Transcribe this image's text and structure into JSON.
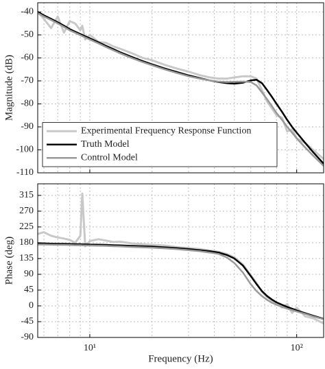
{
  "chart_data": [
    {
      "type": "line",
      "ylabel": "Magnitude (dB)",
      "x": [
        5.6,
        6,
        6.5,
        7,
        7.5,
        8,
        8.5,
        9,
        9.2,
        9.5,
        10,
        11,
        12,
        13,
        14,
        16,
        18,
        20,
        23,
        26,
        30,
        34,
        38,
        42,
        46,
        50,
        55,
        60,
        64,
        68,
        72,
        76,
        80,
        85,
        90,
        95,
        100,
        110,
        120,
        135
      ],
      "series": [
        {
          "name": "Experimental Frequency Response Function",
          "color": "#c8c8c8",
          "width": 3,
          "values": [
            -40,
            -43,
            -47,
            -42,
            -49,
            -44,
            -45,
            -48,
            -46,
            -52,
            -50,
            -53,
            -53.5,
            -55,
            -56,
            -58,
            -60,
            -61,
            -63,
            -64.5,
            -66,
            -67.5,
            -68.5,
            -69,
            -69,
            -68.5,
            -68,
            -68,
            -69,
            -74,
            -79,
            -82,
            -85,
            -86,
            -92,
            -91,
            -95,
            -97,
            -100,
            -104
          ]
        },
        {
          "name": "Truth Model",
          "color": "#000000",
          "width": 2.5,
          "values": [
            -40,
            -41.5,
            -43,
            -44.5,
            -46,
            -47.5,
            -48.6,
            -49.6,
            -50,
            -50.6,
            -51.5,
            -53.2,
            -54.8,
            -56.2,
            -57.5,
            -59.6,
            -61.4,
            -62.8,
            -64.6,
            -66,
            -67.6,
            -68.8,
            -69.8,
            -70.5,
            -71,
            -71.2,
            -70.8,
            -69.8,
            -69.5,
            -71,
            -74,
            -77,
            -80,
            -83.5,
            -87,
            -90,
            -92.5,
            -97,
            -101,
            -106
          ]
        },
        {
          "name": "Control Model",
          "color": "#999999",
          "width": 2.5,
          "values": [
            -40.5,
            -42,
            -43.5,
            -45,
            -46.5,
            -48,
            -49.1,
            -50.1,
            -50.5,
            -51.1,
            -52,
            -53.7,
            -55.3,
            -56.7,
            -58,
            -60.1,
            -61.8,
            -63.2,
            -65,
            -66.4,
            -68,
            -69,
            -69.8,
            -70.3,
            -70.5,
            -70.4,
            -70.3,
            -70.5,
            -72,
            -75,
            -78,
            -81,
            -84,
            -87,
            -90,
            -92.5,
            -95,
            -99,
            -102.5,
            -107
          ]
        }
      ],
      "xlim": [
        5.6,
        135
      ],
      "xticks": [
        10,
        100
      ],
      "xtick_labels": false,
      "xminorticks": [
        6,
        7,
        8,
        9,
        20,
        30,
        40,
        50,
        60,
        70,
        80,
        90
      ],
      "ylim": [
        -110,
        -36
      ],
      "yticks": [
        -110,
        -100,
        -90,
        -80,
        -70,
        -60,
        -50,
        -40
      ],
      "log_x": true,
      "grid": true,
      "legend": "lower left"
    },
    {
      "type": "line",
      "ylabel": "Phase (deg)",
      "xlabel": "Frequency  (Hz)",
      "x": [
        5.6,
        6,
        6.5,
        7,
        7.5,
        8,
        8.5,
        9,
        9.2,
        9.5,
        10,
        11,
        12,
        13,
        14,
        16,
        18,
        20,
        23,
        26,
        30,
        34,
        38,
        42,
        46,
        50,
        55,
        60,
        64,
        68,
        72,
        76,
        80,
        85,
        90,
        95,
        100,
        110,
        120,
        135
      ],
      "series": [
        {
          "color": "#c8c8c8",
          "width": 3,
          "values": [
            205,
            210,
            200,
            195,
            192,
            188,
            180,
            200,
            320,
            170,
            185,
            190,
            186,
            182,
            183,
            178,
            176,
            174,
            172,
            168,
            165,
            162,
            158,
            154,
            148,
            138,
            118,
            88,
            65,
            40,
            25,
            15,
            8,
            -5,
            5,
            -20,
            -5,
            -30,
            -35,
            -50
          ]
        },
        {
          "color": "#000000",
          "width": 2.5,
          "values": [
            178,
            178,
            177.5,
            177,
            177,
            176.5,
            176,
            176,
            175.5,
            175.5,
            175,
            174.5,
            174,
            173,
            172.5,
            171,
            170,
            169,
            167,
            165,
            162,
            159,
            156,
            152,
            145,
            135,
            115,
            85,
            62,
            42,
            28,
            18,
            10,
            3,
            -3,
            -8,
            -13,
            -21,
            -28,
            -37
          ]
        },
        {
          "color": "#999999",
          "width": 2.5,
          "values": [
            175,
            175,
            174.5,
            174,
            174,
            173.5,
            173,
            173,
            172.5,
            172.5,
            172,
            171.5,
            171,
            170,
            169.5,
            168,
            167,
            166,
            164,
            162,
            159,
            156,
            152,
            148,
            138,
            122,
            95,
            62,
            42,
            28,
            17,
            9,
            3,
            -3,
            -8,
            -12,
            -16,
            -23,
            -30,
            -38
          ]
        }
      ],
      "xlim": [
        5.6,
        135
      ],
      "xticks": [
        {
          "value": 10,
          "label": "10¹"
        },
        {
          "value": 100,
          "label": "10²"
        }
      ],
      "xminorticks": [
        6,
        7,
        8,
        9,
        20,
        30,
        40,
        50,
        60,
        70,
        80,
        90
      ],
      "ylim": [
        -90,
        348
      ],
      "yticks": [
        -90,
        -45,
        0,
        45,
        90,
        135,
        180,
        225,
        270,
        315
      ],
      "log_x": true,
      "grid": true
    }
  ]
}
